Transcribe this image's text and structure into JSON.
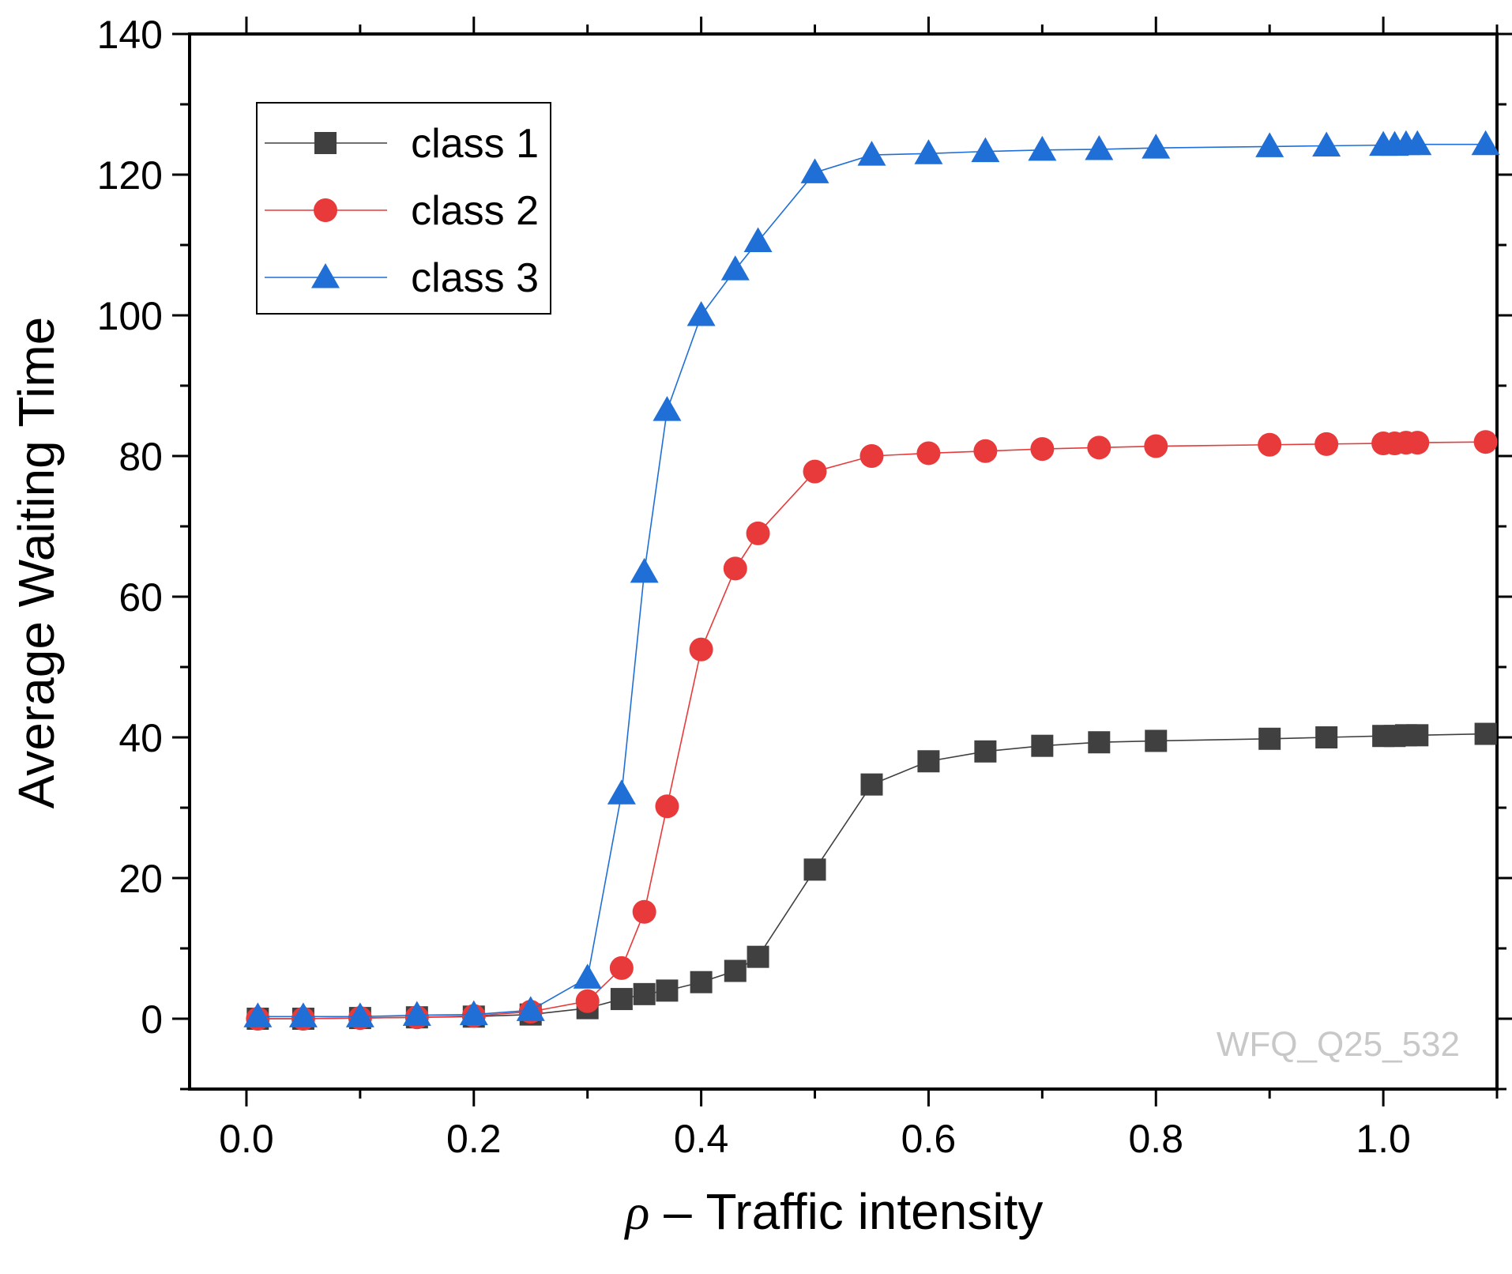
{
  "chart_data": {
    "type": "line",
    "title": "",
    "xlabel_symbol": "ρ",
    "xlabel_text": " – Traffic intensity",
    "ylabel": "Average Waiting Time",
    "xlim": [
      -0.05,
      1.1
    ],
    "ylim": [
      -10,
      140
    ],
    "xticks": [
      0.0,
      0.2,
      0.4,
      0.6,
      0.8,
      1.0
    ],
    "xtick_labels": [
      "0.0",
      "0.2",
      "0.4",
      "0.6",
      "0.8",
      "1.0"
    ],
    "yticks": [
      0,
      20,
      40,
      60,
      80,
      100,
      120,
      140
    ],
    "ytick_labels": [
      "0",
      "20",
      "40",
      "60",
      "80",
      "100",
      "120",
      "140"
    ],
    "grid": false,
    "legend_position": "top-left",
    "watermark": "WFQ_Q25_532",
    "x": [
      0.01,
      0.05,
      0.1,
      0.15,
      0.2,
      0.25,
      0.3,
      0.33,
      0.35,
      0.37,
      0.4,
      0.43,
      0.45,
      0.5,
      0.55,
      0.6,
      0.65,
      0.7,
      0.75,
      0.8,
      0.9,
      0.95,
      1.0,
      1.01,
      1.02,
      1.03,
      1.09
    ],
    "series": [
      {
        "name": "class 1",
        "color": "#404040",
        "marker": "square",
        "values": [
          0.0,
          0.0,
          0.1,
          0.2,
          0.3,
          0.6,
          1.5,
          2.8,
          3.5,
          4.0,
          5.2,
          6.8,
          8.8,
          21.2,
          33.3,
          36.6,
          38.0,
          38.8,
          39.3,
          39.5,
          39.8,
          40.0,
          40.2,
          40.2,
          40.3,
          40.3,
          40.5
        ]
      },
      {
        "name": "class 2",
        "color": "#e83a3a",
        "marker": "circle",
        "values": [
          0.0,
          0.0,
          0.1,
          0.2,
          0.4,
          1.0,
          2.5,
          7.2,
          15.2,
          30.2,
          52.5,
          64.0,
          69.0,
          77.8,
          80.0,
          80.4,
          80.7,
          81.0,
          81.2,
          81.4,
          81.6,
          81.7,
          81.8,
          81.8,
          81.9,
          81.9,
          82.0
        ]
      },
      {
        "name": "class 3",
        "color": "#1f6fd6",
        "marker": "triangle",
        "values": [
          0.3,
          0.3,
          0.3,
          0.5,
          0.6,
          1.2,
          5.8,
          32.0,
          63.5,
          86.5,
          100.0,
          106.5,
          110.5,
          120.3,
          122.8,
          123.0,
          123.3,
          123.5,
          123.6,
          123.8,
          124.0,
          124.1,
          124.2,
          124.2,
          124.3,
          124.3,
          124.3
        ]
      }
    ]
  }
}
